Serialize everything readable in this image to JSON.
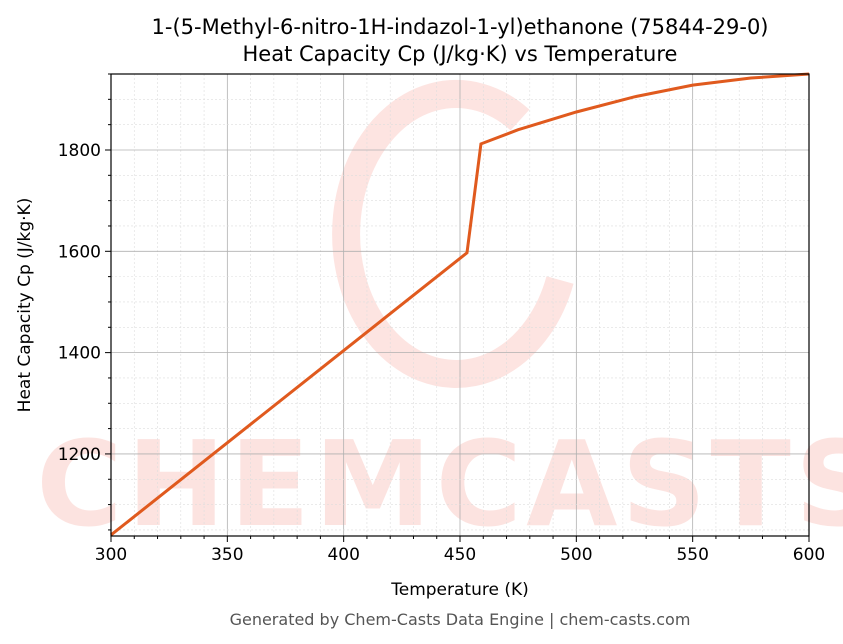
{
  "chart_data": {
    "type": "line",
    "title": "1-(5-Methyl-6-nitro-1H-indazol-1-yl)ethanone (75844-29-0)",
    "subtitle": "Heat Capacity Cp (J/kg·K) vs Temperature",
    "xlabel": "Temperature (K)",
    "ylabel": "Heat Capacity Cp (J/kg·K)",
    "xlim": [
      300,
      600
    ],
    "ylim": [
      1038,
      1950
    ],
    "xticks": [
      300,
      350,
      400,
      450,
      500,
      550,
      600
    ],
    "yticks": [
      1200,
      1400,
      1600,
      1800
    ],
    "grid": true,
    "line_color": "#e05a1e",
    "series": [
      {
        "x": [
          300,
          453,
          459,
          475,
          500,
          525,
          550,
          575,
          600
        ],
        "y": [
          1040,
          1597,
          1812,
          1840,
          1875,
          1905,
          1928,
          1942,
          1950
        ]
      }
    ],
    "watermark": "CHEMCASTS",
    "footer": "Generated by Chem-Casts Data Engine | chem-casts.com"
  }
}
